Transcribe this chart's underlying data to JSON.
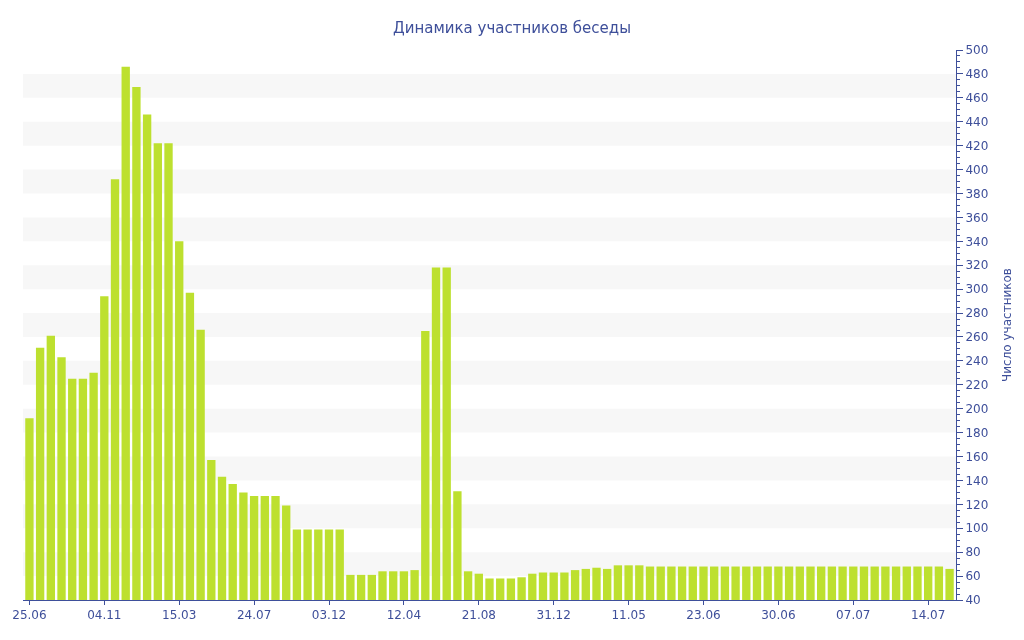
{
  "chart_data": {
    "type": "bar",
    "title": "Динамика участников беседы",
    "ylabel": "Число участников",
    "categories": [
      "25.06",
      null,
      null,
      null,
      null,
      null,
      null,
      "04.11",
      null,
      null,
      null,
      null,
      null,
      null,
      "15.03",
      null,
      null,
      null,
      null,
      null,
      null,
      "24.07",
      null,
      null,
      null,
      null,
      null,
      null,
      "03.12",
      null,
      null,
      null,
      null,
      null,
      null,
      "12.04",
      null,
      null,
      null,
      null,
      null,
      null,
      "21.08",
      null,
      null,
      null,
      null,
      null,
      null,
      "31.12",
      null,
      null,
      null,
      null,
      null,
      null,
      "11.05",
      null,
      null,
      null,
      null,
      null,
      null,
      "23.06",
      null,
      null,
      null,
      null,
      null,
      null,
      "30.06",
      null,
      null,
      null,
      null,
      null,
      null,
      "07.07",
      null,
      null,
      null,
      null,
      null,
      null,
      "14.07",
      null,
      null
    ],
    "values": [
      192,
      251,
      261,
      243,
      225,
      225,
      230,
      294,
      392,
      486,
      469,
      446,
      422,
      422,
      340,
      297,
      266,
      157,
      143,
      137,
      130,
      127,
      127,
      127,
      119,
      99,
      99,
      99,
      99,
      99,
      61,
      61,
      61,
      64,
      64,
      64,
      65,
      265,
      318,
      318,
      131,
      64,
      62,
      58,
      58,
      58,
      59,
      62,
      63,
      63,
      63,
      65,
      66,
      67,
      66,
      69,
      69,
      69,
      68,
      68,
      68,
      68,
      68,
      68,
      68,
      68,
      68,
      68,
      68,
      68,
      68,
      68,
      68,
      68,
      68,
      68,
      68,
      68,
      68,
      68,
      68,
      68,
      68,
      68,
      68,
      68,
      66
    ],
    "color": "#bde02f",
    "ylim": [
      40,
      500
    ],
    "yticks": [
      40,
      60,
      80,
      100,
      120,
      140,
      160,
      180,
      200,
      220,
      240,
      260,
      280,
      300,
      320,
      340,
      360,
      380,
      400,
      420,
      440,
      460,
      480,
      500
    ],
    "bands": [
      {
        "axis": "y",
        "from": 60,
        "to": 80,
        "color": "#f7f7f7"
      },
      {
        "axis": "y",
        "from": 100,
        "to": 120,
        "color": "#f7f7f7"
      },
      {
        "axis": "y",
        "from": 140,
        "to": 160,
        "color": "#f7f7f7"
      },
      {
        "axis": "y",
        "from": 180,
        "to": 200,
        "color": "#f7f7f7"
      },
      {
        "axis": "y",
        "from": 220,
        "to": 240,
        "color": "#f7f7f7"
      },
      {
        "axis": "y",
        "from": 260,
        "to": 280,
        "color": "#f7f7f7"
      },
      {
        "axis": "y",
        "from": 300,
        "to": 320,
        "color": "#f7f7f7"
      },
      {
        "axis": "y",
        "from": 340,
        "to": 360,
        "color": "#f7f7f7"
      },
      {
        "axis": "y",
        "from": 380,
        "to": 400,
        "color": "#f7f7f7"
      },
      {
        "axis": "y",
        "from": 420,
        "to": 440,
        "color": "#f7f7f7"
      },
      {
        "axis": "y",
        "from": 460,
        "to": 480,
        "color": "#f7f7f7"
      }
    ]
  }
}
